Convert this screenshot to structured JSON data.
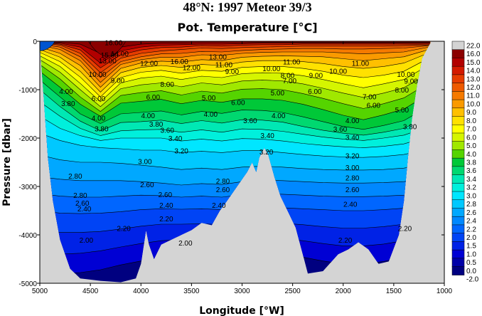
{
  "chart_data": {
    "type": "heatmap",
    "title": "48°N: 1997 Meteor 39/3",
    "subtitle": "Pot. Temperature [°C]",
    "xlabel": "Longitude [°W]",
    "ylabel": "Pressure [dbar]",
    "xlim": [
      5000,
      1000
    ],
    "ylim": [
      0,
      -5000
    ],
    "x_ticks": [
      "5000",
      "4500",
      "4000",
      "3500",
      "3000",
      "2500",
      "2000",
      "1500",
      "1000"
    ],
    "y_ticks": [
      "0",
      "-1000",
      "-2000",
      "-3000",
      "-4000",
      "-5000"
    ],
    "colorbar": {
      "levels": [
        "22.0",
        "16.0",
        "15.0",
        "14.0",
        "13.0",
        "12.0",
        "11.0",
        "10.0",
        "9.0",
        "8.0",
        "7.0",
        "6.0",
        "5.0",
        "4.0",
        "3.8",
        "3.6",
        "3.4",
        "3.2",
        "3.0",
        "2.8",
        "2.6",
        "2.4",
        "2.2",
        "2.0",
        "1.5",
        "1.0",
        "0.5",
        "0.0",
        "-2.0"
      ],
      "colors": [
        "#d4d4d4",
        "#8b0000",
        "#b20000",
        "#d41a00",
        "#e63c00",
        "#ee5a00",
        "#f57a00",
        "#fa9a00",
        "#ffc000",
        "#ffe100",
        "#ffff00",
        "#d5f500",
        "#a0e800",
        "#55d400",
        "#00c838",
        "#00d870",
        "#00e8b4",
        "#00f0dc",
        "#00e6ff",
        "#00c8ff",
        "#00a8ff",
        "#0088ff",
        "#0066ff",
        "#0044f5",
        "#0022e6",
        "#0000d4",
        "#0000a8",
        "#000080"
      ]
    },
    "contour_labels": [
      {
        "text": "16.00",
        "x": 4270,
        "y": -40
      },
      {
        "text": "15.00",
        "x": 4310,
        "y": -300
      },
      {
        "text": "14.00",
        "x": 4210,
        "y": -270
      },
      {
        "text": "13.00",
        "x": 4330,
        "y": -420
      },
      {
        "text": "12.00",
        "x": 3920,
        "y": -470
      },
      {
        "text": "10.00",
        "x": 4430,
        "y": -700
      },
      {
        "text": "9.00",
        "x": 4230,
        "y": -820
      },
      {
        "text": "13.00",
        "x": 3240,
        "y": -340
      },
      {
        "text": "16.00",
        "x": 3620,
        "y": -430
      },
      {
        "text": "11.00",
        "x": 3180,
        "y": -500
      },
      {
        "text": "12.00",
        "x": 3500,
        "y": -560
      },
      {
        "text": "9.00",
        "x": 3100,
        "y": -640
      },
      {
        "text": "10.00",
        "x": 2710,
        "y": -580
      },
      {
        "text": "11.00",
        "x": 2510,
        "y": -440
      },
      {
        "text": "8.00",
        "x": 2550,
        "y": -720
      },
      {
        "text": "7.00",
        "x": 2530,
        "y": -830
      },
      {
        "text": "9.00",
        "x": 2270,
        "y": -720
      },
      {
        "text": "10.00",
        "x": 2050,
        "y": -630
      },
      {
        "text": "11.00",
        "x": 1830,
        "y": -470
      },
      {
        "text": "10.00",
        "x": 1380,
        "y": -700
      },
      {
        "text": "9.00",
        "x": 1330,
        "y": -840
      },
      {
        "text": "8.00",
        "x": 1420,
        "y": -1020
      },
      {
        "text": "7.00",
        "x": 1740,
        "y": -1160
      },
      {
        "text": "6.00",
        "x": 1700,
        "y": -1340
      },
      {
        "text": "6.00",
        "x": 2280,
        "y": -1050
      },
      {
        "text": "5.00",
        "x": 2650,
        "y": -1080
      },
      {
        "text": "6.00",
        "x": 3040,
        "y": -1280
      },
      {
        "text": "5.00",
        "x": 3330,
        "y": -1180
      },
      {
        "text": "8.00",
        "x": 3740,
        "y": -900
      },
      {
        "text": "6.00",
        "x": 3880,
        "y": -1170
      },
      {
        "text": "6.00",
        "x": 4420,
        "y": -1200
      },
      {
        "text": "4.00",
        "x": 4740,
        "y": -1050
      },
      {
        "text": "3.80",
        "x": 4720,
        "y": -1300
      },
      {
        "text": "4.00",
        "x": 4420,
        "y": -1600
      },
      {
        "text": "3.80",
        "x": 4390,
        "y": -1820
      },
      {
        "text": "4.00",
        "x": 3930,
        "y": -1550
      },
      {
        "text": "3.80",
        "x": 3850,
        "y": -1730
      },
      {
        "text": "3.60",
        "x": 3740,
        "y": -1850
      },
      {
        "text": "3.40",
        "x": 3660,
        "y": -2020
      },
      {
        "text": "4.00",
        "x": 3310,
        "y": -1520
      },
      {
        "text": "3.60",
        "x": 2920,
        "y": -1650
      },
      {
        "text": "4.00",
        "x": 2640,
        "y": -1550
      },
      {
        "text": "3.40",
        "x": 2750,
        "y": -1960
      },
      {
        "text": "3.60",
        "x": 2030,
        "y": -1830
      },
      {
        "text": "4.00",
        "x": 1910,
        "y": -1650
      },
      {
        "text": "3.40",
        "x": 1910,
        "y": -2000
      },
      {
        "text": "3.80",
        "x": 1340,
        "y": -1780
      },
      {
        "text": "5.00",
        "x": 1420,
        "y": -1430
      },
      {
        "text": "3.20",
        "x": 3600,
        "y": -2280
      },
      {
        "text": "3.20",
        "x": 2760,
        "y": -2300
      },
      {
        "text": "3.20",
        "x": 1910,
        "y": -2380
      },
      {
        "text": "3.00",
        "x": 3960,
        "y": -2500
      },
      {
        "text": "3.00",
        "x": 1910,
        "y": -2620
      },
      {
        "text": "2.80",
        "x": 4650,
        "y": -2800
      },
      {
        "text": "2.60",
        "x": 3940,
        "y": -2980
      },
      {
        "text": "2.80",
        "x": 3190,
        "y": -2900
      },
      {
        "text": "2.60",
        "x": 3190,
        "y": -3080
      },
      {
        "text": "2.80",
        "x": 1910,
        "y": -2840
      },
      {
        "text": "2.60",
        "x": 1910,
        "y": -3080
      },
      {
        "text": "2.60",
        "x": 3760,
        "y": -3180
      },
      {
        "text": "2.80",
        "x": 4600,
        "y": -3200
      },
      {
        "text": "2.60",
        "x": 4580,
        "y": -3360
      },
      {
        "text": "2.40",
        "x": 4560,
        "y": -3480
      },
      {
        "text": "2.40",
        "x": 3750,
        "y": -3400
      },
      {
        "text": "2.40",
        "x": 3230,
        "y": -3400
      },
      {
        "text": "2.40",
        "x": 1930,
        "y": -3380
      },
      {
        "text": "2.20",
        "x": 3750,
        "y": -3680
      },
      {
        "text": "2.20",
        "x": 4170,
        "y": -3880
      },
      {
        "text": "2.00",
        "x": 3560,
        "y": -4180
      },
      {
        "text": "2.00",
        "x": 4540,
        "y": -4120
      },
      {
        "text": "2.20",
        "x": 1980,
        "y": -4120
      },
      {
        "text": "2.20",
        "x": 1390,
        "y": -3880
      }
    ]
  }
}
